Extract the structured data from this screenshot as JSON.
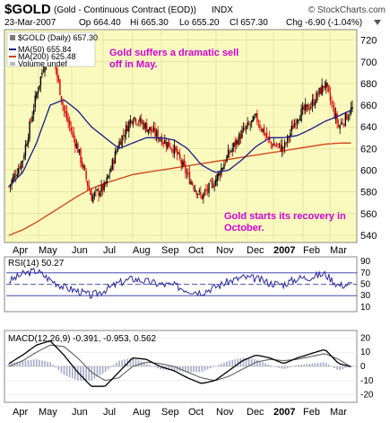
{
  "header": {
    "symbol": "$GOLD",
    "description": "(Gold - Continuous Contract (EOD))",
    "exchange": "INDX",
    "source": "© StockCharts.com",
    "date": "23-Mar-2007",
    "open": "Op 664.40",
    "high": "Hi 665.30",
    "low": "Lo 655.20",
    "close": "Cl 657.30",
    "change": "Chg -6.90 (-1.04%)",
    "change_indicator": "down-triangle-icon"
  },
  "colors": {
    "panel_bg": "#fafabe",
    "price_up": "#000000",
    "price_down": "#e00000",
    "ma50": "#1a1a8c",
    "ma200": "#d04018",
    "rsi": "#2a2aa0",
    "macd": "#000000",
    "signal": "#6a6a6a",
    "histogram": "#a8a8c8",
    "annotation": "#d400d4"
  },
  "chart_data": [
    {
      "type": "candlestick",
      "title": "$GOLD (Daily) 657.30",
      "legend": [
        {
          "label": "MA(50) 655.84",
          "color": "#1a1a8c"
        },
        {
          "label": "MA(200) 625.48",
          "color": "#d04018"
        },
        {
          "label": "Volume undef",
          "color": "#000000"
        }
      ],
      "legend_position": "top-left",
      "annotations": [
        {
          "lines": [
            "Gold suffers a dramatic sell",
            "off in May."
          ]
        },
        {
          "lines": [
            "Gold starts its recovery in",
            "October."
          ]
        }
      ],
      "x_labels": [
        "Apr",
        "May",
        "Jun",
        "Jul",
        "Aug",
        "Sep",
        "Oct",
        "Nov",
        "Dec",
        "2007",
        "Feb",
        "Mar"
      ],
      "y_ticks": [
        540,
        560,
        580,
        600,
        620,
        640,
        660,
        680,
        700,
        720
      ],
      "ylim": [
        535,
        728
      ],
      "grid": true,
      "series": [
        {
          "name": "Close",
          "x": [
            "Apr",
            "Apr",
            "May",
            "May",
            "May",
            "Jun",
            "Jun",
            "Jun",
            "Jul",
            "Jul",
            "Aug",
            "Aug",
            "Sep",
            "Sep",
            "Oct",
            "Oct",
            "Nov",
            "Nov",
            "Dec",
            "Dec",
            "2007",
            "2007",
            "Feb",
            "Feb",
            "Mar",
            "Mar"
          ],
          "values": [
            585,
            610,
            670,
            720,
            655,
            620,
            575,
            585,
            625,
            650,
            640,
            630,
            620,
            595,
            575,
            590,
            615,
            635,
            648,
            625,
            620,
            650,
            660,
            680,
            640,
            657
          ]
        },
        {
          "name": "MA(50)",
          "values": [
            585,
            598,
            625,
            660,
            665,
            655,
            640,
            630,
            620,
            625,
            630,
            630,
            628,
            620,
            605,
            598,
            600,
            610,
            622,
            630,
            630,
            632,
            638,
            645,
            650,
            656
          ]
        },
        {
          "name": "MA(200)",
          "values": [
            540,
            545,
            552,
            560,
            568,
            576,
            583,
            588,
            592,
            596,
            598,
            600,
            602,
            604,
            606,
            608,
            610,
            612,
            614,
            616,
            618,
            620,
            622,
            624,
            625,
            625
          ]
        }
      ]
    },
    {
      "type": "line",
      "title": "RSI(14) 50.27",
      "y_ticks": [
        90,
        70,
        50,
        30,
        10
      ],
      "ylim": [
        5,
        95
      ],
      "reference_lines": [
        70,
        50,
        30
      ],
      "series": [
        {
          "name": "RSI(14)",
          "values": [
            55,
            68,
            74,
            58,
            45,
            38,
            30,
            40,
            52,
            60,
            55,
            50,
            48,
            40,
            36,
            45,
            55,
            62,
            60,
            52,
            50,
            60,
            63,
            68,
            48,
            50
          ]
        }
      ]
    },
    {
      "type": "line",
      "title": "MACD(12,26,9) -0.391, -0.953, 0.562",
      "y_ticks": [
        20,
        10,
        0,
        -10,
        -20
      ],
      "ylim": [
        -24,
        24
      ],
      "series": [
        {
          "name": "MACD",
          "values": [
            2,
            8,
            15,
            18,
            8,
            -4,
            -14,
            -14,
            -4,
            6,
            5,
            0,
            -3,
            -8,
            -12,
            -10,
            -3,
            4,
            8,
            6,
            2,
            6,
            9,
            12,
            2,
            -0.391
          ]
        },
        {
          "name": "Signal",
          "values": [
            0,
            4,
            10,
            15,
            14,
            6,
            -4,
            -10,
            -8,
            0,
            3,
            2,
            0,
            -4,
            -8,
            -10,
            -7,
            -2,
            3,
            5,
            4,
            5,
            7,
            9,
            5,
            -0.953
          ]
        },
        {
          "name": "Histogram",
          "values": [
            2,
            4,
            5,
            3,
            -6,
            -10,
            -10,
            -4,
            4,
            6,
            2,
            -2,
            -3,
            -4,
            -4,
            0,
            4,
            6,
            5,
            1,
            -2,
            1,
            2,
            3,
            -3,
            0.562
          ]
        }
      ]
    }
  ]
}
